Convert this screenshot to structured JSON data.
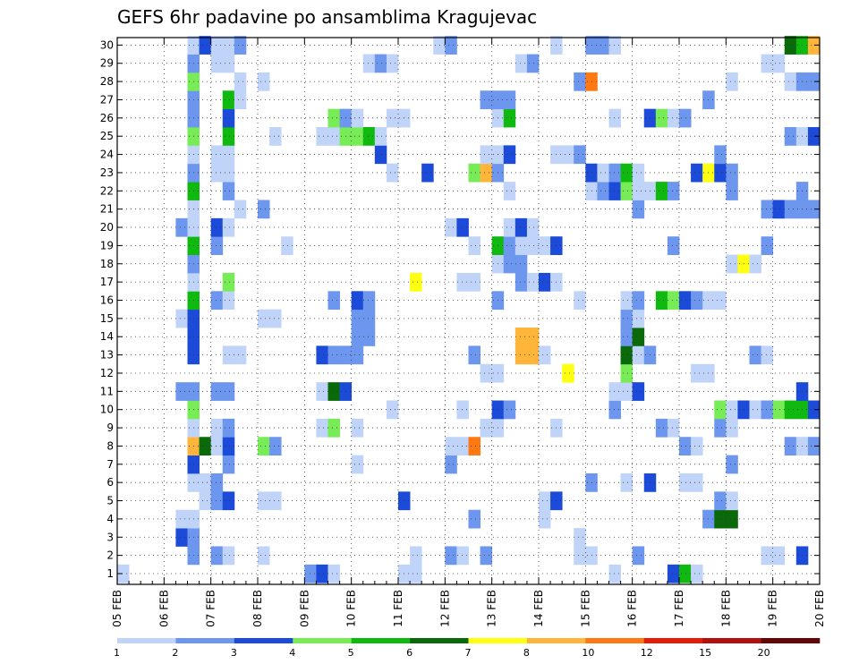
{
  "chart_data": {
    "type": "heatmap",
    "title": "GEFS 6hr padavine po ansamblima Kragujevac",
    "xlabel": "",
    "ylabel": "",
    "x_ticks": [
      "05 FEB",
      "06 FEB",
      "07 FEB",
      "08 FEB",
      "09 FEB",
      "10 FEB",
      "11 FEB",
      "12 FEB",
      "13 FEB",
      "14 FEB",
      "15 FEB",
      "16 FEB",
      "17 FEB",
      "18 FEB",
      "19 FEB",
      "20 FEB"
    ],
    "y_ticks": [
      1,
      2,
      3,
      4,
      5,
      6,
      7,
      8,
      9,
      10,
      11,
      12,
      13,
      14,
      15,
      16,
      17,
      18,
      19,
      20,
      21,
      22,
      23,
      24,
      25,
      26,
      27,
      28,
      29,
      30
    ],
    "steps_per_day": 4,
    "x_step_count": 60,
    "members": 30,
    "grid": true,
    "colorbar": {
      "levels": [
        "1",
        "2",
        "3",
        "4",
        "5",
        "6",
        "7",
        "8",
        "10",
        "12",
        "15",
        "20"
      ],
      "colors": [
        "#c0d4fa",
        "#6d96ee",
        "#1b4bd8",
        "#78ec56",
        "#10b910",
        "#0a6a0a",
        "#ffff10",
        "#ffb43a",
        "#ff7811",
        "#e41c0a",
        "#b40f0f",
        "#640606"
      ]
    },
    "cells": [
      [
        1,
        0,
        0
      ],
      [
        1,
        16,
        1
      ],
      [
        1,
        17,
        2
      ],
      [
        1,
        18,
        0
      ],
      [
        1,
        24,
        0
      ],
      [
        1,
        25,
        0
      ],
      [
        1,
        42,
        0
      ],
      [
        1,
        47,
        2
      ],
      [
        1,
        48,
        4
      ],
      [
        1,
        49,
        0
      ],
      [
        2,
        6,
        1
      ],
      [
        2,
        8,
        1
      ],
      [
        2,
        9,
        0
      ],
      [
        2,
        12,
        0
      ],
      [
        2,
        25,
        0
      ],
      [
        2,
        28,
        1
      ],
      [
        2,
        29,
        0
      ],
      [
        2,
        31,
        1
      ],
      [
        2,
        39,
        0
      ],
      [
        2,
        40,
        0
      ],
      [
        2,
        44,
        1
      ],
      [
        2,
        55,
        0
      ],
      [
        2,
        56,
        0
      ],
      [
        2,
        58,
        2
      ],
      [
        3,
        5,
        2
      ],
      [
        3,
        6,
        1
      ],
      [
        3,
        39,
        0
      ],
      [
        4,
        5,
        0
      ],
      [
        4,
        6,
        0
      ],
      [
        4,
        30,
        1
      ],
      [
        4,
        36,
        0
      ],
      [
        4,
        50,
        1
      ],
      [
        4,
        51,
        5
      ],
      [
        4,
        52,
        5
      ],
      [
        5,
        7,
        0
      ],
      [
        5,
        8,
        1
      ],
      [
        5,
        9,
        2
      ],
      [
        5,
        12,
        0
      ],
      [
        5,
        13,
        0
      ],
      [
        5,
        24,
        2
      ],
      [
        5,
        36,
        0
      ],
      [
        5,
        37,
        2
      ],
      [
        5,
        51,
        1
      ],
      [
        5,
        52,
        0
      ],
      [
        6,
        6,
        0
      ],
      [
        6,
        7,
        0
      ],
      [
        6,
        8,
        1
      ],
      [
        6,
        40,
        1
      ],
      [
        6,
        43,
        0
      ],
      [
        6,
        45,
        2
      ],
      [
        6,
        48,
        0
      ],
      [
        6,
        49,
        0
      ],
      [
        7,
        6,
        2
      ],
      [
        7,
        9,
        1
      ],
      [
        7,
        20,
        0
      ],
      [
        7,
        28,
        1
      ],
      [
        7,
        52,
        1
      ],
      [
        8,
        6,
        7
      ],
      [
        8,
        7,
        5
      ],
      [
        8,
        8,
        0
      ],
      [
        8,
        9,
        2
      ],
      [
        8,
        12,
        3
      ],
      [
        8,
        13,
        1
      ],
      [
        8,
        28,
        0
      ],
      [
        8,
        29,
        0
      ],
      [
        8,
        30,
        8
      ],
      [
        8,
        48,
        1
      ],
      [
        8,
        49,
        0
      ],
      [
        8,
        57,
        1
      ],
      [
        8,
        58,
        0
      ],
      [
        8,
        59,
        1
      ],
      [
        9,
        6,
        0
      ],
      [
        9,
        8,
        0
      ],
      [
        9,
        9,
        1
      ],
      [
        9,
        17,
        0
      ],
      [
        9,
        18,
        3
      ],
      [
        9,
        20,
        0
      ],
      [
        9,
        31,
        0
      ],
      [
        9,
        32,
        0
      ],
      [
        9,
        37,
        0
      ],
      [
        9,
        46,
        1
      ],
      [
        9,
        47,
        0
      ],
      [
        9,
        51,
        1
      ],
      [
        9,
        52,
        0
      ],
      [
        10,
        6,
        3
      ],
      [
        10,
        23,
        0
      ],
      [
        10,
        29,
        0
      ],
      [
        10,
        32,
        2
      ],
      [
        10,
        33,
        1
      ],
      [
        10,
        42,
        1
      ],
      [
        10,
        51,
        3
      ],
      [
        10,
        52,
        0
      ],
      [
        10,
        53,
        2
      ],
      [
        10,
        54,
        0
      ],
      [
        10,
        55,
        1
      ],
      [
        10,
        56,
        3
      ],
      [
        10,
        57,
        4
      ],
      [
        10,
        58,
        4
      ],
      [
        10,
        59,
        2
      ],
      [
        11,
        5,
        1
      ],
      [
        11,
        6,
        1
      ],
      [
        11,
        8,
        1
      ],
      [
        11,
        9,
        1
      ],
      [
        11,
        17,
        0
      ],
      [
        11,
        18,
        5
      ],
      [
        11,
        19,
        2
      ],
      [
        11,
        42,
        0
      ],
      [
        11,
        43,
        0
      ],
      [
        11,
        44,
        2
      ],
      [
        11,
        58,
        2
      ],
      [
        12,
        31,
        0
      ],
      [
        12,
        32,
        0
      ],
      [
        12,
        38,
        6
      ],
      [
        12,
        43,
        3
      ],
      [
        12,
        49,
        0
      ],
      [
        12,
        50,
        0
      ],
      [
        13,
        6,
        2
      ],
      [
        13,
        9,
        0
      ],
      [
        13,
        10,
        0
      ],
      [
        13,
        17,
        2
      ],
      [
        13,
        18,
        1
      ],
      [
        13,
        19,
        1
      ],
      [
        13,
        20,
        1
      ],
      [
        13,
        30,
        1
      ],
      [
        13,
        34,
        7
      ],
      [
        13,
        35,
        7
      ],
      [
        13,
        36,
        0
      ],
      [
        13,
        43,
        5
      ],
      [
        13,
        44,
        0
      ],
      [
        13,
        45,
        1
      ],
      [
        13,
        54,
        1
      ],
      [
        13,
        55,
        0
      ],
      [
        14,
        6,
        2
      ],
      [
        14,
        20,
        1
      ],
      [
        14,
        21,
        1
      ],
      [
        14,
        34,
        7
      ],
      [
        14,
        35,
        7
      ],
      [
        14,
        43,
        1
      ],
      [
        14,
        44,
        5
      ],
      [
        15,
        5,
        0
      ],
      [
        15,
        6,
        2
      ],
      [
        15,
        12,
        0
      ],
      [
        15,
        13,
        0
      ],
      [
        15,
        20,
        1
      ],
      [
        15,
        21,
        1
      ],
      [
        15,
        43,
        1
      ],
      [
        15,
        44,
        0
      ],
      [
        16,
        6,
        4
      ],
      [
        16,
        8,
        1
      ],
      [
        16,
        9,
        0
      ],
      [
        16,
        18,
        1
      ],
      [
        16,
        20,
        2
      ],
      [
        16,
        21,
        1
      ],
      [
        16,
        32,
        1
      ],
      [
        16,
        39,
        0
      ],
      [
        16,
        43,
        0
      ],
      [
        16,
        44,
        1
      ],
      [
        16,
        46,
        4
      ],
      [
        16,
        47,
        3
      ],
      [
        16,
        48,
        2
      ],
      [
        16,
        49,
        1
      ],
      [
        16,
        50,
        0
      ],
      [
        16,
        51,
        0
      ],
      [
        17,
        6,
        0
      ],
      [
        17,
        9,
        3
      ],
      [
        17,
        25,
        6
      ],
      [
        17,
        29,
        0
      ],
      [
        17,
        30,
        0
      ],
      [
        17,
        34,
        1
      ],
      [
        17,
        35,
        0
      ],
      [
        17,
        36,
        2
      ],
      [
        17,
        37,
        0
      ],
      [
        18,
        6,
        1
      ],
      [
        18,
        32,
        0
      ],
      [
        18,
        33,
        1
      ],
      [
        18,
        34,
        1
      ],
      [
        18,
        52,
        0
      ],
      [
        18,
        53,
        6
      ],
      [
        18,
        54,
        0
      ],
      [
        19,
        6,
        4
      ],
      [
        19,
        8,
        1
      ],
      [
        19,
        14,
        0
      ],
      [
        19,
        30,
        0
      ],
      [
        19,
        32,
        4
      ],
      [
        19,
        33,
        1
      ],
      [
        19,
        34,
        0
      ],
      [
        19,
        35,
        0
      ],
      [
        19,
        36,
        0
      ],
      [
        19,
        37,
        2
      ],
      [
        19,
        47,
        1
      ],
      [
        19,
        55,
        1
      ],
      [
        20,
        5,
        1
      ],
      [
        20,
        6,
        0
      ],
      [
        20,
        8,
        2
      ],
      [
        20,
        9,
        0
      ],
      [
        20,
        28,
        0
      ],
      [
        20,
        29,
        2
      ],
      [
        20,
        33,
        0
      ],
      [
        20,
        34,
        2
      ],
      [
        20,
        35,
        0
      ],
      [
        21,
        6,
        0
      ],
      [
        21,
        10,
        0
      ],
      [
        21,
        12,
        1
      ],
      [
        21,
        44,
        1
      ],
      [
        21,
        55,
        1
      ],
      [
        21,
        56,
        2
      ],
      [
        21,
        57,
        1
      ],
      [
        21,
        58,
        1
      ],
      [
        21,
        59,
        1
      ],
      [
        22,
        6,
        4
      ],
      [
        22,
        9,
        1
      ],
      [
        22,
        33,
        0
      ],
      [
        22,
        40,
        0
      ],
      [
        22,
        41,
        1
      ],
      [
        22,
        42,
        2
      ],
      [
        22,
        43,
        3
      ],
      [
        22,
        44,
        0
      ],
      [
        22,
        45,
        0
      ],
      [
        22,
        46,
        4
      ],
      [
        22,
        47,
        1
      ],
      [
        22,
        52,
        1
      ],
      [
        22,
        58,
        1
      ],
      [
        23,
        6,
        1
      ],
      [
        23,
        8,
        0
      ],
      [
        23,
        9,
        0
      ],
      [
        23,
        23,
        0
      ],
      [
        23,
        26,
        2
      ],
      [
        23,
        30,
        3
      ],
      [
        23,
        31,
        7
      ],
      [
        23,
        32,
        1
      ],
      [
        23,
        40,
        2
      ],
      [
        23,
        41,
        0
      ],
      [
        23,
        42,
        1
      ],
      [
        23,
        43,
        4
      ],
      [
        23,
        44,
        0
      ],
      [
        23,
        49,
        2
      ],
      [
        23,
        50,
        6
      ],
      [
        23,
        51,
        2
      ],
      [
        23,
        52,
        1
      ],
      [
        24,
        6,
        0
      ],
      [
        24,
        8,
        0
      ],
      [
        24,
        9,
        0
      ],
      [
        24,
        22,
        2
      ],
      [
        24,
        31,
        0
      ],
      [
        24,
        32,
        0
      ],
      [
        24,
        33,
        2
      ],
      [
        24,
        37,
        0
      ],
      [
        24,
        38,
        0
      ],
      [
        24,
        39,
        1
      ],
      [
        24,
        51,
        1
      ],
      [
        25,
        6,
        3
      ],
      [
        25,
        9,
        4
      ],
      [
        25,
        13,
        0
      ],
      [
        25,
        17,
        0
      ],
      [
        25,
        18,
        0
      ],
      [
        25,
        19,
        3
      ],
      [
        25,
        20,
        3
      ],
      [
        25,
        21,
        4
      ],
      [
        25,
        22,
        0
      ],
      [
        25,
        57,
        1
      ],
      [
        25,
        58,
        0
      ],
      [
        25,
        59,
        2
      ],
      [
        26,
        6,
        1
      ],
      [
        26,
        9,
        2
      ],
      [
        26,
        18,
        3
      ],
      [
        26,
        19,
        1
      ],
      [
        26,
        20,
        0
      ],
      [
        26,
        23,
        0
      ],
      [
        26,
        24,
        0
      ],
      [
        26,
        32,
        0
      ],
      [
        26,
        33,
        4
      ],
      [
        26,
        42,
        0
      ],
      [
        26,
        45,
        2
      ],
      [
        26,
        46,
        3
      ],
      [
        26,
        47,
        0
      ],
      [
        26,
        48,
        1
      ],
      [
        27,
        6,
        1
      ],
      [
        27,
        9,
        4
      ],
      [
        27,
        10,
        0
      ],
      [
        27,
        31,
        1
      ],
      [
        27,
        32,
        1
      ],
      [
        27,
        33,
        1
      ],
      [
        27,
        50,
        1
      ],
      [
        28,
        6,
        3
      ],
      [
        28,
        10,
        0
      ],
      [
        28,
        12,
        0
      ],
      [
        28,
        39,
        1
      ],
      [
        28,
        40,
        8
      ],
      [
        28,
        52,
        0
      ],
      [
        28,
        57,
        0
      ],
      [
        28,
        58,
        1
      ],
      [
        28,
        59,
        1
      ],
      [
        29,
        6,
        1
      ],
      [
        29,
        8,
        0
      ],
      [
        29,
        9,
        0
      ],
      [
        29,
        21,
        0
      ],
      [
        29,
        22,
        1
      ],
      [
        29,
        23,
        0
      ],
      [
        29,
        34,
        0
      ],
      [
        29,
        35,
        1
      ],
      [
        29,
        55,
        0
      ],
      [
        29,
        56,
        0
      ],
      [
        30,
        6,
        0
      ],
      [
        30,
        7,
        2
      ],
      [
        30,
        8,
        0
      ],
      [
        30,
        9,
        0
      ],
      [
        30,
        10,
        1
      ],
      [
        30,
        27,
        0
      ],
      [
        30,
        28,
        1
      ],
      [
        30,
        37,
        0
      ],
      [
        30,
        40,
        1
      ],
      [
        30,
        41,
        1
      ],
      [
        30,
        42,
        0
      ],
      [
        30,
        57,
        5
      ],
      [
        30,
        58,
        4
      ],
      [
        30,
        59,
        7
      ]
    ]
  }
}
